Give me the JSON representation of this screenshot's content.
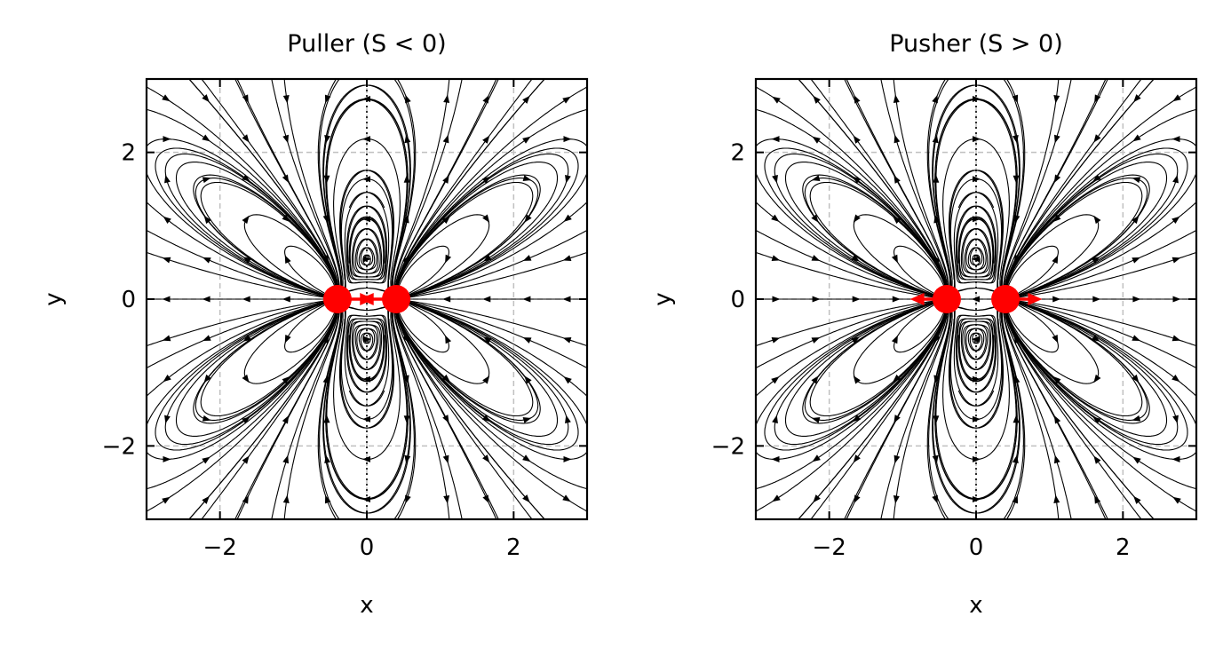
{
  "chart_data": [
    {
      "type": "streamplot",
      "title": "Puller (S < 0)",
      "xlabel": "x",
      "ylabel": "y",
      "xlim": [
        -3,
        3
      ],
      "ylim": [
        -3,
        3
      ],
      "xticks": [
        -2,
        0,
        2
      ],
      "yticks": [
        -2,
        0,
        2
      ],
      "xtick_labels": [
        "−2",
        "0",
        "2"
      ],
      "ytick_labels": [
        "−2",
        "0",
        "2"
      ],
      "grid": true,
      "dipole_strength_sign": -1,
      "flagella": [
        {
          "x": -0.4,
          "y": 0,
          "force_direction": "right"
        },
        {
          "x": 0.4,
          "y": 0,
          "force_direction": "left"
        }
      ],
      "flagella_color": "#ff0000"
    },
    {
      "type": "streamplot",
      "title": "Pusher (S > 0)",
      "xlabel": "x",
      "ylabel": "y",
      "xlim": [
        -3,
        3
      ],
      "ylim": [
        -3,
        3
      ],
      "xticks": [
        -2,
        0,
        2
      ],
      "yticks": [
        -2,
        0,
        2
      ],
      "xtick_labels": [
        "−2",
        "0",
        "2"
      ],
      "ytick_labels": [
        "−2",
        "0",
        "2"
      ],
      "grid": true,
      "dipole_strength_sign": 1,
      "flagella": [
        {
          "x": -0.4,
          "y": 0,
          "force_direction": "left"
        },
        {
          "x": 0.4,
          "y": 0,
          "force_direction": "right"
        }
      ],
      "flagella_color": "#ff0000"
    }
  ]
}
